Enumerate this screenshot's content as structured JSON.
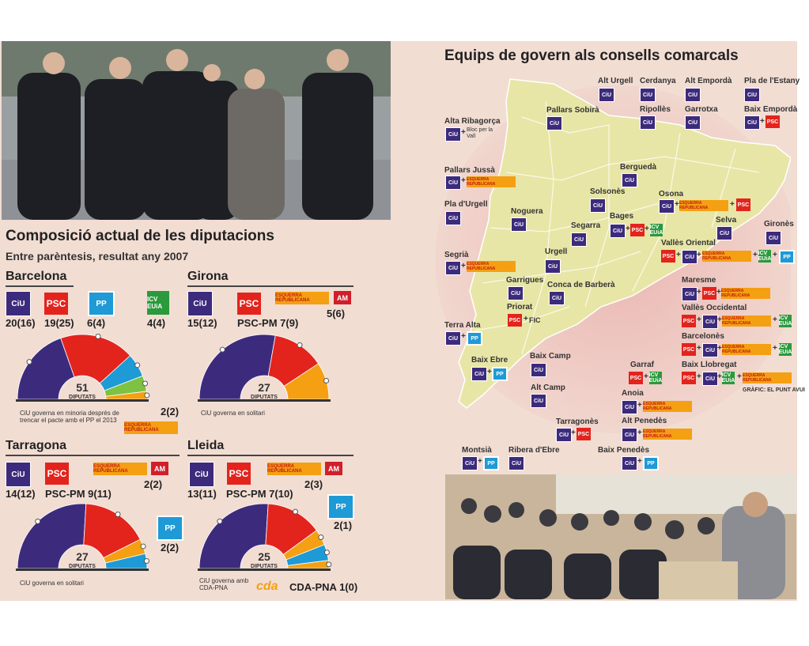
{
  "left": {
    "title": "Composició actual de les diputacions",
    "subtitle": "Entre parèntesis, resultat any 2007"
  },
  "right": {
    "title": "Equips de govern als consells comarcals",
    "credit": "GRÀFIC: EL PUNT AVUI"
  },
  "logos": {
    "ciu": "CiU",
    "psc": "PSC",
    "pp": "PP",
    "icv": "ICV EUiA",
    "erc": "ESQUERRA REPUBLICANA",
    "am": "AM",
    "cda": "cda",
    "plus": "+"
  },
  "chart_data": [
    {
      "type": "pie",
      "title": "Barcelona",
      "total_label": "51",
      "total_caption": "DIPUTATS",
      "categories": [
        "CiU",
        "PSC",
        "PP",
        "ICV-EUiA",
        "ERC"
      ],
      "values": [
        20,
        19,
        6,
        4,
        2
      ],
      "previous": [
        16,
        25,
        4,
        4,
        2
      ],
      "labels": [
        "20(16)",
        "19(25)",
        "6(4)",
        "4(4)",
        "2(2)"
      ],
      "colors": [
        "#3c2b7c",
        "#e2241d",
        "#1e9ad6",
        "#7dc242",
        "#f4a012"
      ],
      "note": "CiU governa en minoria després de trencar el pacte amb el PP el 2013"
    },
    {
      "type": "pie",
      "title": "Girona",
      "total_label": "27",
      "total_caption": "DIPUTATS",
      "categories": [
        "CiU",
        "PSC-PM",
        "AM"
      ],
      "values": [
        15,
        7,
        5
      ],
      "previous": [
        12,
        9,
        6
      ],
      "labels": [
        "15(12)",
        "PSC-PM 7(9)",
        "5(6)"
      ],
      "colors": [
        "#3c2b7c",
        "#e2241d",
        "#f4a012"
      ],
      "note": "CiU governa en solitari"
    },
    {
      "type": "pie",
      "title": "Tarragona",
      "total_label": "27",
      "total_caption": "DIPUTATS",
      "categories": [
        "CiU",
        "PSC-PM",
        "ERC-AM",
        "PP"
      ],
      "values": [
        14,
        9,
        2,
        2
      ],
      "previous": [
        12,
        11,
        2,
        2
      ],
      "labels": [
        "14(12)",
        "PSC-PM 9(11)",
        "2(2)",
        "2(2)"
      ],
      "colors": [
        "#3c2b7c",
        "#e2241d",
        "#f4a012",
        "#1e9ad6"
      ],
      "note": "CiU governa en solitari"
    },
    {
      "type": "pie",
      "title": "Lleida",
      "total_label": "25",
      "total_caption": "DIPUTATS",
      "categories": [
        "CiU",
        "PSC-PM",
        "ERC-AM",
        "PP",
        "CDA-PNA"
      ],
      "values": [
        13,
        7,
        2,
        2,
        1
      ],
      "previous": [
        11,
        10,
        3,
        1,
        0
      ],
      "labels": [
        "13(11)",
        "PSC-PM 7(10)",
        "2(3)",
        "2(1)",
        "CDA-PNA 1(0)"
      ],
      "colors": [
        "#3c2b7c",
        "#e2241d",
        "#f4a012",
        "#1e9ad6",
        "#f4a012"
      ],
      "note": "CiU governa amb CDA-PNA"
    }
  ],
  "map_labels": {
    "alt_urgell": "Alt Urgell",
    "cerdanya": "Cerdanya",
    "alt_emporda": "Alt Empordà",
    "pla_estany": "Pla de l'Estany",
    "pallars_sobira": "Pallars Sobirà",
    "ripolles": "Ripollès",
    "garrotxa": "Garrotxa",
    "baix_emporda": "Baix Empordà",
    "alta_ribagorca": "Alta Ribagorça",
    "bloc_vall": "Bloc per la Vall",
    "pallars_jussa": "Pallars Jussà",
    "bergueda": "Berguedà",
    "solsones": "Solsonès",
    "osona": "Osona",
    "pla_urgell": "Pla d'Urgell",
    "noguera": "Noguera",
    "bages": "Bages",
    "selva": "Selva",
    "girones": "Gironès",
    "segarra": "Segarra",
    "segria": "Segrià",
    "urgell": "Urgell",
    "valles_oriental": "Vallès Oriental",
    "garrigues": "Garrigues",
    "conca_barbera": "Conca de Barberà",
    "maresme": "Maresme",
    "priorat": "Priorat",
    "fic": "FIC",
    "valles_occidental": "Vallès Occidental",
    "terra_alta": "Terra Alta",
    "barcelones": "Barcelonès",
    "baix_camp": "Baix Camp",
    "baix_ebre": "Baix Ebre",
    "baix_llobregat": "Baix Llobregat",
    "garraf": "Garraf",
    "alt_camp": "Alt Camp",
    "anoia": "Anoia",
    "tarragones": "Tarragonès",
    "alt_penedes": "Alt Penedès",
    "montsia": "Montsià",
    "ribera_ebre": "Ribera d'Ebre",
    "baix_penedes": "Baix Penedès"
  }
}
